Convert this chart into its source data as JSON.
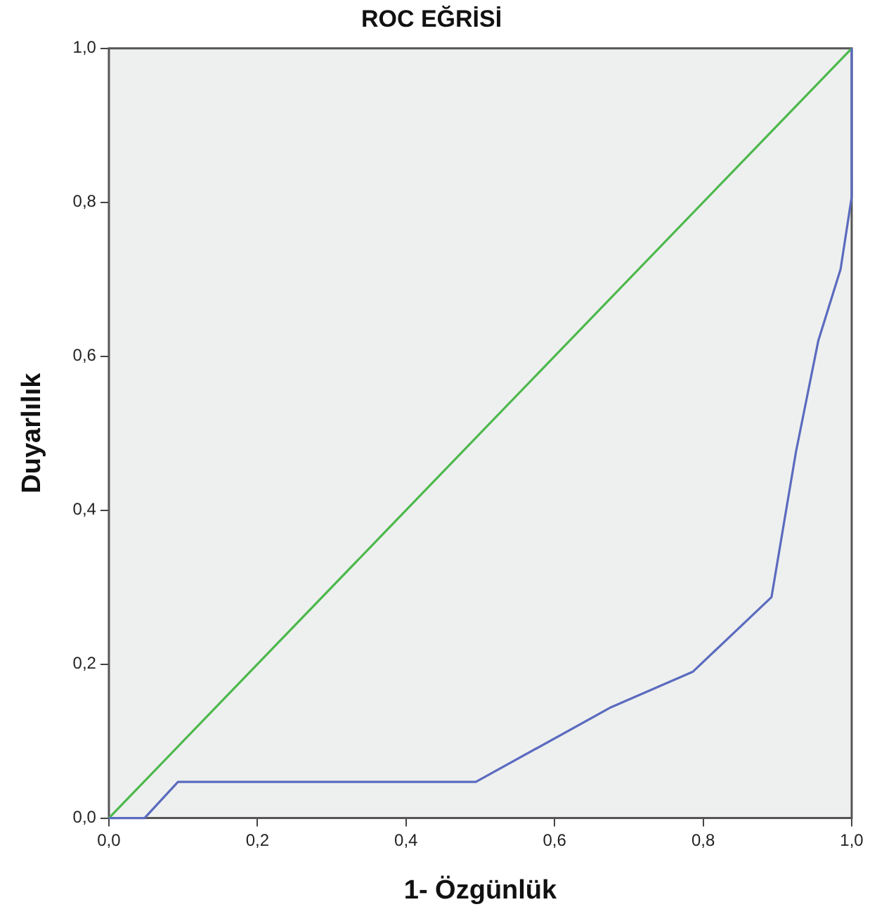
{
  "chart_data": {
    "type": "line",
    "title": "ROC EĞRİSİ",
    "xlabel": "1- Özgünlük",
    "ylabel": "Duyarlılık",
    "xlim": [
      0,
      1
    ],
    "ylim": [
      0,
      1
    ],
    "xticks": [
      {
        "value": 0,
        "label": "0,0"
      },
      {
        "value": 0.2,
        "label": "0,2"
      },
      {
        "value": 0.4,
        "label": "0,4"
      },
      {
        "value": 0.6,
        "label": "0,6"
      },
      {
        "value": 0.8,
        "label": "0,8"
      },
      {
        "value": 1,
        "label": "1,0"
      }
    ],
    "yticks": [
      {
        "value": 0,
        "label": "0,0"
      },
      {
        "value": 0.2,
        "label": "0,2"
      },
      {
        "value": 0.4,
        "label": "0,4"
      },
      {
        "value": 0.6,
        "label": "0,6"
      },
      {
        "value": 0.8,
        "label": "0,8"
      },
      {
        "value": 1,
        "label": "1,0"
      }
    ],
    "grid": false,
    "legend": false,
    "marker": "none",
    "line_style": "solid",
    "series": [
      {
        "color": "#5b6bbf",
        "x": [
          0,
          0.048,
          0.093,
          0.494,
          0.676,
          0.786,
          0.892,
          0.925,
          0.955,
          0.985,
          1.0,
          1.0
        ],
        "values": [
          0,
          0,
          0.047,
          0.047,
          0.144,
          0.19,
          0.287,
          0.476,
          0.62,
          0.713,
          0.807,
          1.0
        ]
      },
      {
        "color": "#4cb84c",
        "x": [
          0,
          1
        ],
        "values": [
          0,
          1
        ]
      }
    ]
  }
}
